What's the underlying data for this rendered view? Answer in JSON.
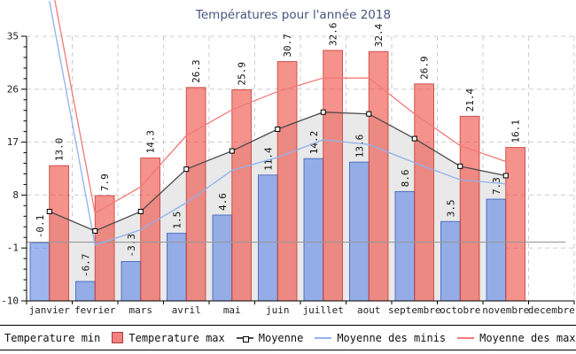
{
  "chart_data": {
    "type": "bar",
    "title": "Températures pour l'année 2018",
    "categories": [
      "janvier",
      "fevrier",
      "mars",
      "avril",
      "mai",
      "juin",
      "juillet",
      "aout",
      "septembre",
      "octobre",
      "novembre",
      "decembre"
    ],
    "bar_series": [
      {
        "name": "Temperature min",
        "fill": "rgba(92,133,230,0.6)",
        "border": "rgba(55,90,185,0.8)",
        "values": [
          -0.1,
          -6.7,
          -3.3,
          1.5,
          4.6,
          11.4,
          14.2,
          13.6,
          8.6,
          3.5,
          7.3,
          null
        ]
      },
      {
        "name": "Temperature max",
        "fill": "rgba(238,73,62,0.6)",
        "border": "rgba(195,55,50,0.8)",
        "values": [
          13.0,
          7.9,
          14.3,
          26.3,
          25.9,
          30.7,
          32.6,
          32.4,
          26.9,
          21.4,
          16.1,
          null
        ]
      }
    ],
    "line_series": [
      {
        "name": "Moyenne",
        "color": "#4a4a4a",
        "marker": "open-square",
        "area_color": "#e9e9e9",
        "values": [
          5.2,
          1.9,
          5.2,
          12.4,
          15.5,
          19.2,
          22.1,
          21.8,
          17.6,
          12.9,
          11.3,
          null
        ]
      },
      {
        "name": "Moyenne des minis",
        "color": "#8fb1ed",
        "values": [
          41.0,
          -0.5,
          2.1,
          6.7,
          12.2,
          14.4,
          17.4,
          16.6,
          13.5,
          10.6,
          9.9,
          null
        ]
      },
      {
        "name": "Moyenne des maxis",
        "color": "#f27979",
        "values": [
          46.0,
          4.9,
          9.4,
          18.1,
          22.5,
          25.6,
          27.9,
          27.9,
          21.8,
          16.4,
          13.7,
          null
        ]
      }
    ],
    "yticks": [
      35,
      26,
      17,
      8,
      -1,
      -10
    ],
    "ylim": [
      -10,
      35
    ],
    "y_minor_step": 1.8,
    "zero_line": 0,
    "grid": true,
    "legend_position": "bottom",
    "legend_items": [
      {
        "label": "Temperature min",
        "swatch": "square",
        "fill": "#85a8ec",
        "border": "#3a57a8"
      },
      {
        "label": "Temperature max",
        "swatch": "square",
        "fill": "#f28181",
        "border": "#a83a3a"
      },
      {
        "label": "Moyenne",
        "swatch": "line-marker",
        "color": "#4a4a4a"
      },
      {
        "label": "Moyenne des minis",
        "swatch": "line",
        "color": "#8fb1ed"
      },
      {
        "label": "Moyenne des maxis",
        "swatch": "line",
        "color": "#f27979"
      }
    ],
    "title_color": "#47557d"
  }
}
